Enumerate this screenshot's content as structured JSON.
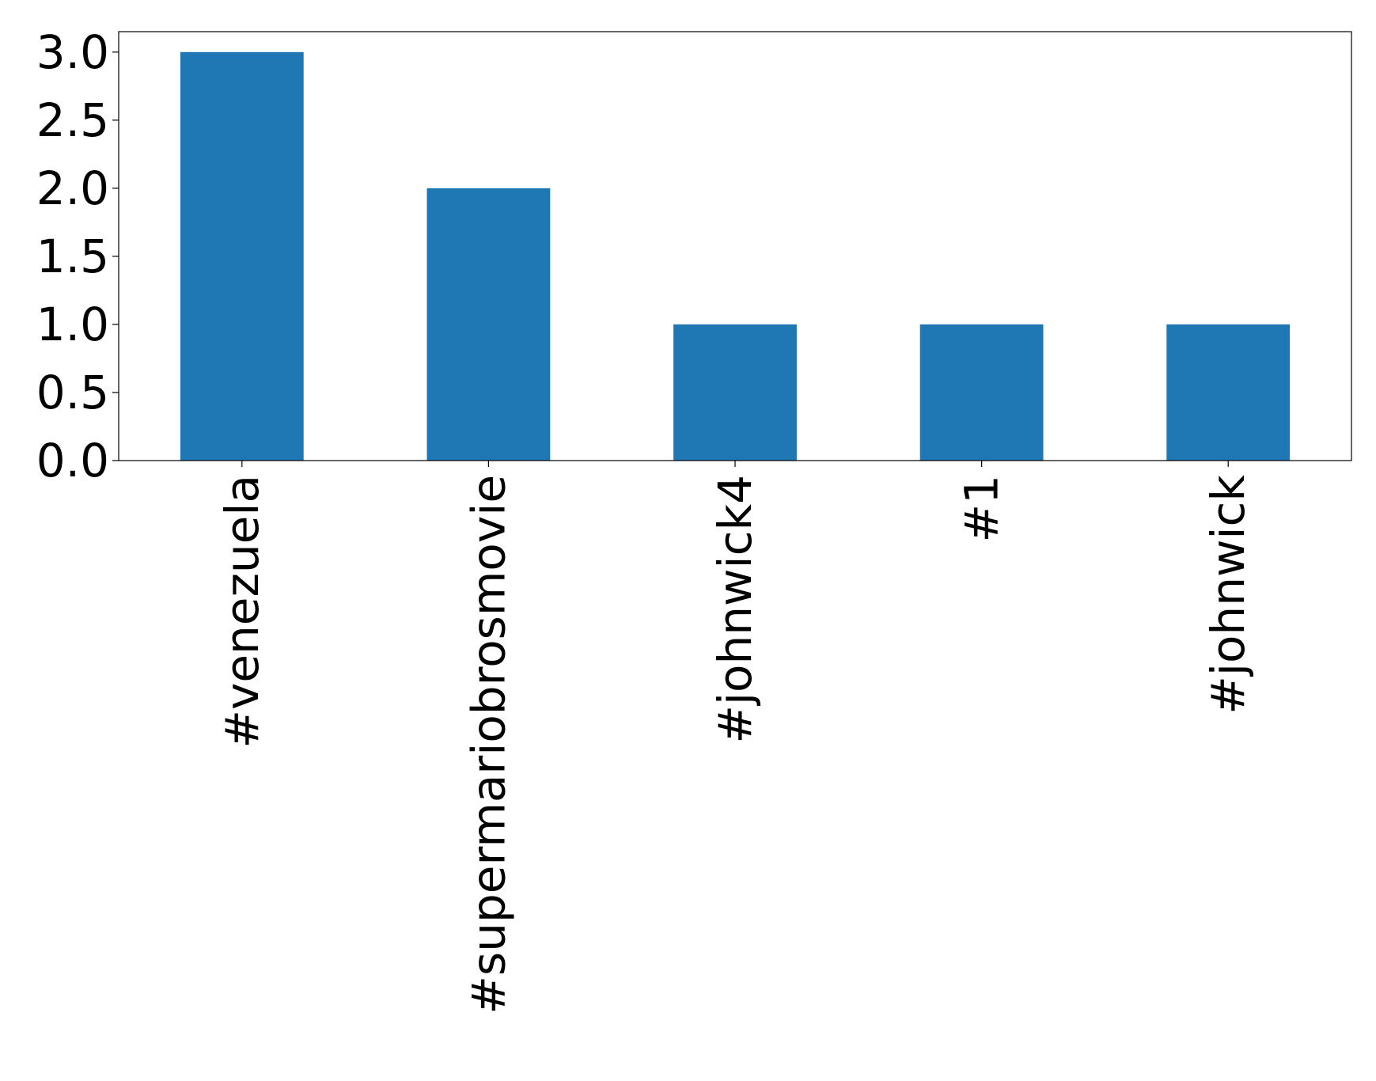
{
  "chart_data": {
    "type": "bar",
    "title": "",
    "xlabel": "",
    "ylabel": "",
    "categories": [
      "#venezuela",
      "#supermariobrosmovie",
      "#johnwick4",
      "#1",
      "#johnwick"
    ],
    "values": [
      3,
      2,
      1,
      1,
      1
    ],
    "ylim": [
      0,
      3.15
    ],
    "yticks": [
      0.0,
      0.5,
      1.0,
      1.5,
      2.0,
      2.5,
      3.0
    ],
    "ytick_labels": [
      "0.0",
      "0.5",
      "1.0",
      "1.5",
      "2.0",
      "2.5",
      "3.0"
    ],
    "grid": false,
    "legend": "none",
    "bar_color": "#1f77b4",
    "x_tick_rotation": "vertical"
  }
}
